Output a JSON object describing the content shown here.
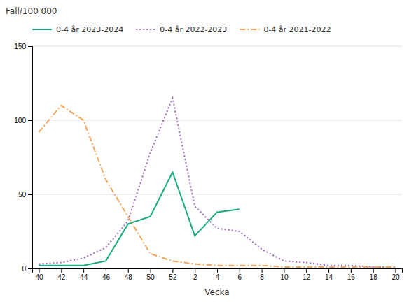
{
  "chart_data": {
    "type": "line",
    "xlabel": "Vecka",
    "ylabel": "Fall/100 000",
    "categories": [
      "40",
      "42",
      "44",
      "46",
      "48",
      "50",
      "52",
      "2",
      "4",
      "6",
      "8",
      "10",
      "12",
      "14",
      "16",
      "18",
      "20"
    ],
    "series": [
      {
        "name": "0-4 år 2023-2024",
        "color": "#1aaa80",
        "line_style": "solid",
        "values": [
          2,
          2,
          2,
          5,
          30,
          35,
          65,
          22,
          38,
          40,
          null,
          null,
          null,
          null,
          null,
          null,
          null
        ]
      },
      {
        "name": "0-4 år 2022-2023",
        "color": "#9b6abf",
        "line_style": "dotted",
        "values": [
          3,
          4,
          7,
          14,
          32,
          78,
          115,
          42,
          27,
          25,
          13,
          5,
          4,
          2,
          2,
          1,
          1
        ]
      },
      {
        "name": "0-4 år 2021-2022",
        "color": "#f5a55a",
        "line_style": "dashdot",
        "values": [
          92,
          110,
          100,
          60,
          35,
          10,
          5,
          3,
          2,
          2,
          2,
          1,
          1,
          1,
          1,
          1,
          1
        ]
      }
    ],
    "ylim": [
      0,
      150
    ],
    "yticks": [
      0,
      50,
      100,
      150
    ],
    "grid": true,
    "legend": "top"
  }
}
